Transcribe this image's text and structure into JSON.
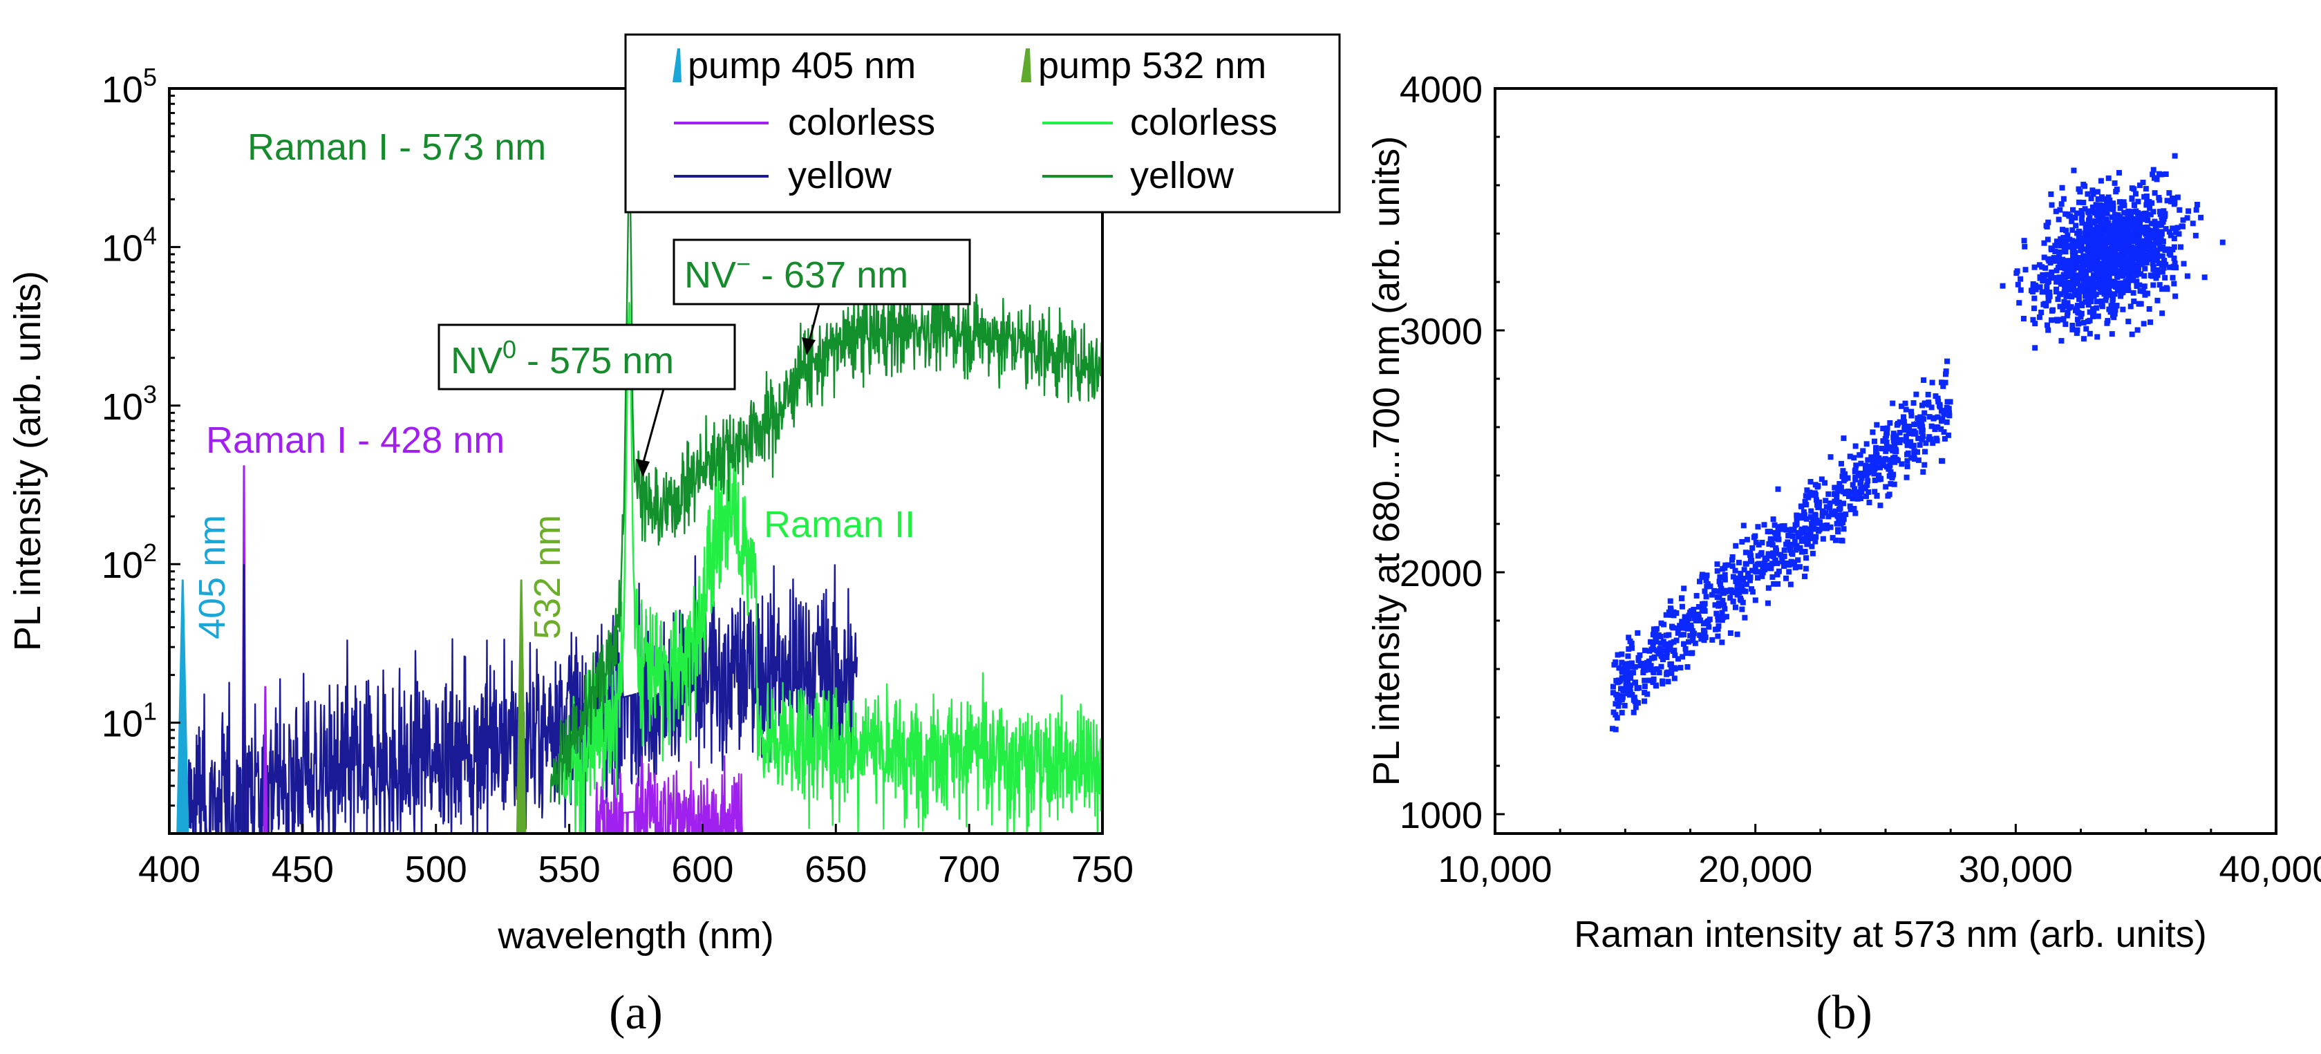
{
  "colors": {
    "pump405": "#1aa7d8",
    "pump532": "#5faa2c",
    "colorless405": "#a020f0",
    "yellow405": "#1a1a96",
    "colorless532": "#22ee44",
    "yellow532": "#12902c",
    "scatter": "#0a28ff",
    "nv_label": "#168a2c",
    "raman428_label": "#a020f0",
    "label405": "#1aa7d8",
    "label532": "#6cae2a",
    "raman2_label": "#22ee44"
  },
  "chart_data": [
    {
      "type": "line",
      "panel_label": "(a)",
      "xlabel": "wavelength (nm)",
      "ylabel": "PL intensity (arb. units)",
      "xlim": [
        400,
        750
      ],
      "ylim": [
        2,
        100000
      ],
      "yscale": "log",
      "x_ticks": [
        "400",
        "450",
        "500",
        "550",
        "600",
        "650",
        "700",
        "750"
      ],
      "y_ticks": [
        {
          "base": "10",
          "exp": "1",
          "value": 10
        },
        {
          "base": "10",
          "exp": "2",
          "value": 100
        },
        {
          "base": "10",
          "exp": "3",
          "value": 1000
        },
        {
          "base": "10",
          "exp": "4",
          "value": 10000
        },
        {
          "base": "10",
          "exp": "5",
          "value": 100000
        }
      ],
      "legend": {
        "placement": "top-right",
        "col1_header": "pump 405 nm",
        "col2_header": "pump 532 nm",
        "col1_items": [
          "colorless",
          "yellow"
        ],
        "col2_items": [
          "colorless",
          "yellow"
        ]
      },
      "annotations": {
        "raman1_573": "Raman I - 573 nm",
        "raman1_428": "Raman I - 428 nm",
        "nv0_main": "NV",
        "nv0_sup": "0",
        "nv0_tail": " - 575 nm",
        "nvm_main": "NV",
        "nvm_sup": "−",
        "nvm_tail": " - 637 nm",
        "pump405": "405 nm",
        "pump532": "532 nm",
        "raman2": "Raman II"
      },
      "series": [
        {
          "name": "yellow (pump 532 nm)",
          "color_key": "yellow532",
          "noise": 0.25,
          "points": [
            [
              543,
              3.5
            ],
            [
              548,
              6
            ],
            [
              553,
              9
            ],
            [
              558,
              14
            ],
            [
              563,
              22
            ],
            [
              567,
              35
            ],
            [
              569,
              60
            ],
            [
              570.5,
              200
            ],
            [
              571.5,
              3000
            ],
            [
              572,
              12000
            ],
            [
              572.6,
              48000
            ],
            [
              573.2,
              9000
            ],
            [
              573.8,
              900
            ],
            [
              574.5,
              330
            ],
            [
              575.5,
              380
            ],
            [
              577,
              320
            ],
            [
              580,
              220
            ],
            [
              585,
              210
            ],
            [
              590,
              260
            ],
            [
              595,
              320
            ],
            [
              600,
              400
            ],
            [
              605,
              470
            ],
            [
              610,
              540
            ],
            [
              615,
              600
            ],
            [
              620,
              700
            ],
            [
              625,
              800
            ],
            [
              630,
              950
            ],
            [
              634,
              1300
            ],
            [
              636,
              1700
            ],
            [
              637,
              2050
            ],
            [
              638.5,
              1700
            ],
            [
              641,
              1700
            ],
            [
              645,
              2000
            ],
            [
              650,
              2300
            ],
            [
              655,
              2600
            ],
            [
              660,
              2800
            ],
            [
              670,
              2900
            ],
            [
              680,
              3050
            ],
            [
              690,
              3050
            ],
            [
              700,
              2900
            ],
            [
              710,
              2700
            ],
            [
              720,
              2450
            ],
            [
              730,
              2200
            ],
            [
              740,
              1950
            ],
            [
              750,
              1700
            ]
          ]
        },
        {
          "name": "colorless (pump 532 nm)",
          "color_key": "colorless532",
          "noise": 0.35,
          "points": [
            [
              548,
              5
            ],
            [
              552,
              6
            ],
            [
              556,
              7
            ],
            [
              560,
              8.5
            ],
            [
              564,
              10
            ],
            [
              567,
              12
            ],
            [
              569,
              16
            ],
            [
              570.5,
              40
            ],
            [
              571.5,
              600
            ],
            [
              572,
              2800
            ],
            [
              572.6,
              5000
            ],
            [
              573.3,
              800
            ],
            [
              574,
              100
            ],
            [
              575,
              40
            ],
            [
              577,
              28
            ],
            [
              580,
              26
            ],
            [
              585,
              22
            ],
            [
              590,
              22
            ],
            [
              594,
              27
            ],
            [
              598,
              45
            ],
            [
              602,
              100
            ],
            [
              606,
              160
            ],
            [
              609,
              210
            ],
            [
              611,
              260
            ],
            [
              612.5,
              270
            ],
            [
              614,
              170
            ],
            [
              616,
              120
            ],
            [
              617,
              100
            ],
            [
              619,
              110
            ],
            [
              620,
              95
            ],
            [
              620.5,
              12
            ],
            [
              622,
              8
            ],
            [
              640,
              8
            ],
            [
              660,
              8
            ],
            [
              680,
              7
            ],
            [
              700,
              7
            ],
            [
              720,
              6
            ],
            [
              740,
              6
            ],
            [
              750,
              6
            ]
          ]
        },
        {
          "name": "yellow (pump 405 nm)",
          "color_key": "yellow405",
          "noise": 0.55,
          "points": [
            [
              405,
              3
            ],
            [
              420,
              3.5
            ],
            [
              428,
              4
            ],
            [
              440,
              4.5
            ],
            [
              460,
              5
            ],
            [
              480,
              6
            ],
            [
              500,
              7
            ],
            [
              520,
              8
            ],
            [
              540,
              10
            ],
            [
              560,
              13
            ],
            [
              580,
              16
            ],
            [
              600,
              20
            ],
            [
              620,
              23
            ],
            [
              640,
              24
            ],
            [
              650,
              22
            ],
            [
              658,
              18
            ]
          ]
        },
        {
          "name": "colorless (pump 405 nm)",
          "color_key": "colorless405",
          "noise": 0.35,
          "points": [
            [
              560,
              2.6
            ],
            [
              580,
              2.8
            ],
            [
              600,
              2.6
            ],
            [
              615,
              2.5
            ]
          ]
        }
      ],
      "spikes": [
        {
          "name": "pump 405 nm",
          "color_key": "pump405",
          "x": 405,
          "peak": 80,
          "width": 4
        },
        {
          "name": "Raman I 428 (colorless)",
          "color_key": "colorless405",
          "x": 428,
          "peak": 420,
          "width": 1
        },
        {
          "name": "Raman I 428 (yellow)",
          "color_key": "yellow405",
          "x": 428,
          "peak": 100,
          "width": 1
        },
        {
          "name": "436 nm line",
          "color_key": "colorless405",
          "x": 436,
          "peak": 17,
          "width": 1
        },
        {
          "name": "pump 532 nm",
          "color_key": "pump532",
          "x": 532,
          "peak": 80,
          "width": 3
        }
      ]
    },
    {
      "type": "scatter",
      "panel_label": "(b)",
      "xlabel": "Raman intensity at 573 nm (arb. units)",
      "ylabel": "PL intensity at 680...700 nm (arb. units)",
      "xlim": [
        10000,
        40000
      ],
      "ylim": [
        920,
        4000
      ],
      "x_ticks": [
        "10,000",
        "20,000",
        "30,000",
        "40,000"
      ],
      "x_tick_values": [
        10000,
        20000,
        30000,
        40000
      ],
      "y_ticks": [
        "1000",
        "2000",
        "3000",
        "4000"
      ],
      "y_tick_values": [
        1000,
        2000,
        3000,
        4000
      ],
      "clusters": [
        {
          "name": "linear band",
          "n": 900,
          "x_range": [
            14500,
            27500
          ],
          "y_at_x0": 1500,
          "slope": 0.093,
          "spread": 150
        },
        {
          "name": "upper cluster",
          "n": 1200,
          "x_center": 33500,
          "x_spread": 2600,
          "y_center": 3320,
          "y_spread": 210,
          "x_min": 29500,
          "x_max": 38800,
          "y_min": 2700,
          "y_max": 3750
        }
      ]
    }
  ]
}
